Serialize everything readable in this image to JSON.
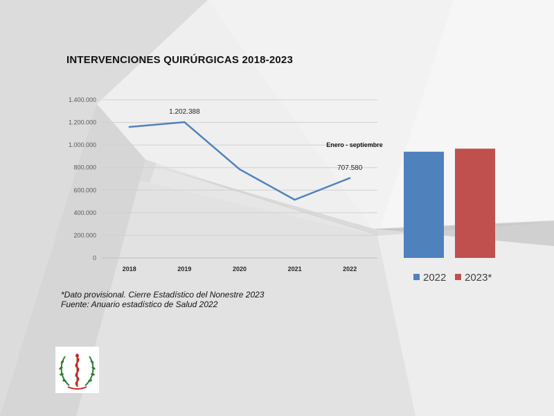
{
  "title": "INTERVENCIONES QUIRÚRGICAS 2018-2023",
  "notes": {
    "provisional": "*Dato provisional. Cierre Estadístico del Nonestre 2023",
    "source": "Fuente: Anuario estadístico de Salud 2022"
  },
  "logo": {
    "icon": "medical-caduceus-emblem"
  },
  "chart_data": [
    {
      "type": "line",
      "categories": [
        "2018",
        "2019",
        "2020",
        "2021",
        "2022"
      ],
      "series": [
        {
          "values": [
            1160000,
            1202388,
            785000,
            515000,
            707580
          ],
          "color": "#4f81bd"
        }
      ],
      "ylim": [
        0,
        1400000
      ],
      "yticks": [
        0,
        200000,
        400000,
        600000,
        800000,
        1000000,
        1200000,
        1400000
      ],
      "ytick_labels": [
        "0",
        "200.000",
        "400.000",
        "600.000",
        "800.000",
        "1.000.000",
        "1.200.000",
        "1.400.000"
      ],
      "data_labels": [
        {
          "category": "2019",
          "text": "1.202.388"
        },
        {
          "category": "2022",
          "text": "707.580"
        }
      ],
      "annotation": "Enero - septiembre",
      "grid": true
    },
    {
      "type": "bar",
      "categories": [
        "2022",
        "2023*"
      ],
      "values": [
        690000,
        710000
      ],
      "colors": [
        "#4f81bd",
        "#c0504d"
      ],
      "legend": [
        {
          "label": "2022",
          "color": "#4f81bd"
        },
        {
          "label": "2023*",
          "color": "#c0504d"
        }
      ],
      "legend_position": "bottom"
    }
  ]
}
